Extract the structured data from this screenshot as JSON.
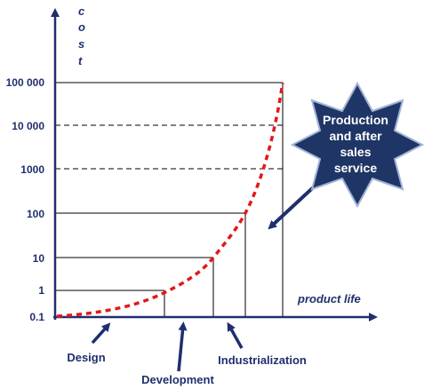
{
  "axes": {
    "y_title_letters": [
      "c",
      "o",
      "s",
      "t"
    ],
    "x_title": "product life"
  },
  "y_ticks": [
    "0.1",
    "1",
    "10",
    "100",
    "1000",
    "10 000",
    "100 000"
  ],
  "phases": {
    "design": "Design",
    "development": "Development",
    "industrialization": "Industrialization"
  },
  "callout": {
    "lines": [
      "Production",
      "and after",
      "sales",
      "service"
    ]
  },
  "colors": {
    "axis": "#1f2f6e",
    "curve": "#e0191c",
    "star_fill": "#1f3566",
    "star_stroke": "#9fb4d6",
    "text": "#1f2f6e"
  }
}
